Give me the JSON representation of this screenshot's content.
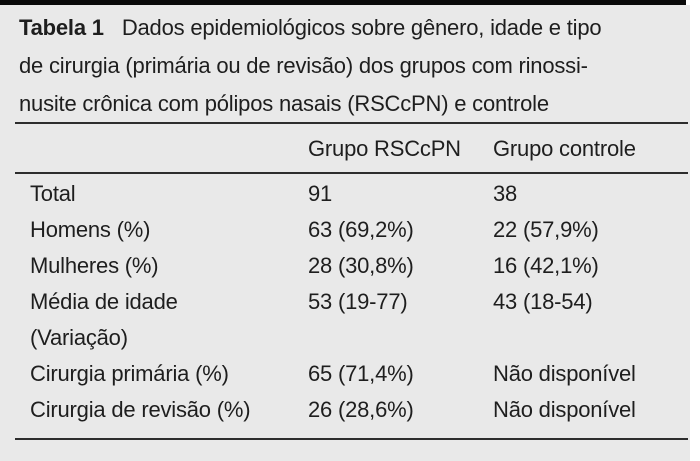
{
  "table": {
    "caption": {
      "label": "Tabela 1",
      "line1_rest": "Dados epidemiológicos sobre gênero, idade e tipo",
      "line2": "de cirurgia (primária ou de revisão) dos grupos com rinossi-",
      "line3": "nusite crônica com pólipos nasais (RSCcPN) e controle"
    },
    "columns": {
      "rsccpn": "Grupo RSCcPN",
      "control": "Grupo controle"
    },
    "rows": [
      {
        "label": "Total",
        "rsccpn": "91",
        "control": "38"
      },
      {
        "label": "Homens (%)",
        "rsccpn": "63 (69,2%)",
        "control": "22 (57,9%)"
      },
      {
        "label": "Mulheres (%)",
        "rsccpn": "28 (30,8%)",
        "control": "16 (42,1%)"
      },
      {
        "label_line1": "Média de idade",
        "label_line2": "(Variação)",
        "rsccpn": "53 (19-77)",
        "control": "43 (18-54)"
      },
      {
        "label": "Cirurgia primária (%)",
        "rsccpn": "65 (71,4%)",
        "control": "Não disponível"
      },
      {
        "label": "Cirurgia de revisão (%)",
        "rsccpn": "26 (28,6%)",
        "control": "Não disponível"
      }
    ],
    "colors": {
      "panel_background": "#e9e9e9",
      "top_bar": "#0a0a0a",
      "text": "#1e1e1e",
      "rule": "#2d2d2d"
    }
  }
}
